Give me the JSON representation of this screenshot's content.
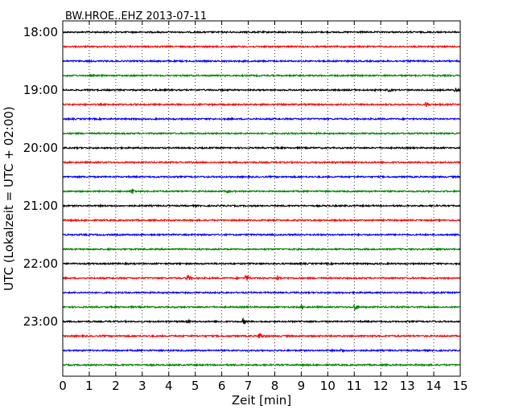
{
  "chart_data": {
    "type": "line",
    "title": "BW.HROE..EHZ 2013-07-11",
    "xlabel": "Zeit  [min]",
    "ylabel": "UTC (Lokalzeit = UTC + 02:00)",
    "xlim": [
      0,
      15
    ],
    "x_ticks": [
      "0",
      "1",
      "2",
      "3",
      "4",
      "5",
      "6",
      "7",
      "8",
      "9",
      "10",
      "11",
      "12",
      "13",
      "14",
      "15"
    ],
    "y_tick_labels": [
      "18:00",
      "19:00",
      "20:00",
      "21:00",
      "22:00",
      "23:00"
    ],
    "grid": "vertical dotted",
    "trace_interval_min": 15,
    "trace_color_cycle": [
      "#000000",
      "#ff0000",
      "#0000ff",
      "#008000"
    ],
    "series": [
      {
        "start": "18:00",
        "color": "#000000",
        "events": []
      },
      {
        "start": "18:15",
        "color": "#ff0000",
        "events": []
      },
      {
        "start": "18:30",
        "color": "#0000ff",
        "events": []
      },
      {
        "start": "18:45",
        "color": "#008000",
        "events": []
      },
      {
        "start": "19:00",
        "color": "#000000",
        "events": [
          {
            "t": 12.3,
            "amp": 3
          },
          {
            "t": 14.8,
            "amp": 4
          }
        ]
      },
      {
        "start": "19:15",
        "color": "#ff0000",
        "events": [
          {
            "t": 13.7,
            "amp": 4
          }
        ]
      },
      {
        "start": "19:30",
        "color": "#0000ff",
        "events": []
      },
      {
        "start": "19:45",
        "color": "#008000",
        "events": []
      },
      {
        "start": "20:00",
        "color": "#000000",
        "events": []
      },
      {
        "start": "20:15",
        "color": "#ff0000",
        "events": []
      },
      {
        "start": "20:30",
        "color": "#0000ff",
        "events": []
      },
      {
        "start": "20:45",
        "color": "#008000",
        "events": [
          {
            "t": 2.6,
            "amp": 5
          },
          {
            "t": 6.2,
            "amp": 3
          }
        ]
      },
      {
        "start": "21:00",
        "color": "#000000",
        "events": []
      },
      {
        "start": "21:15",
        "color": "#ff0000",
        "events": []
      },
      {
        "start": "21:30",
        "color": "#0000ff",
        "events": []
      },
      {
        "start": "21:45",
        "color": "#008000",
        "events": [
          {
            "t": 1.7,
            "amp": 2
          }
        ]
      },
      {
        "start": "22:00",
        "color": "#000000",
        "events": []
      },
      {
        "start": "22:15",
        "color": "#ff0000",
        "events": [
          {
            "t": 4.7,
            "amp": 5
          },
          {
            "t": 6.9,
            "amp": 5
          },
          {
            "t": 8.1,
            "amp": 4
          }
        ]
      },
      {
        "start": "22:30",
        "color": "#0000ff",
        "events": []
      },
      {
        "start": "22:45",
        "color": "#008000",
        "events": [
          {
            "t": 9.0,
            "amp": 3
          },
          {
            "t": 11.0,
            "amp": 5
          }
        ]
      },
      {
        "start": "23:00",
        "color": "#000000",
        "events": [
          {
            "t": 4.7,
            "amp": 3
          },
          {
            "t": 6.8,
            "amp": 4
          }
        ]
      },
      {
        "start": "23:15",
        "color": "#ff0000",
        "events": [
          {
            "t": 7.4,
            "amp": 6
          }
        ]
      },
      {
        "start": "23:30",
        "color": "#0000ff",
        "events": [
          {
            "t": 10.5,
            "amp": 3
          }
        ]
      },
      {
        "start": "23:45",
        "color": "#008000",
        "events": []
      }
    ]
  }
}
